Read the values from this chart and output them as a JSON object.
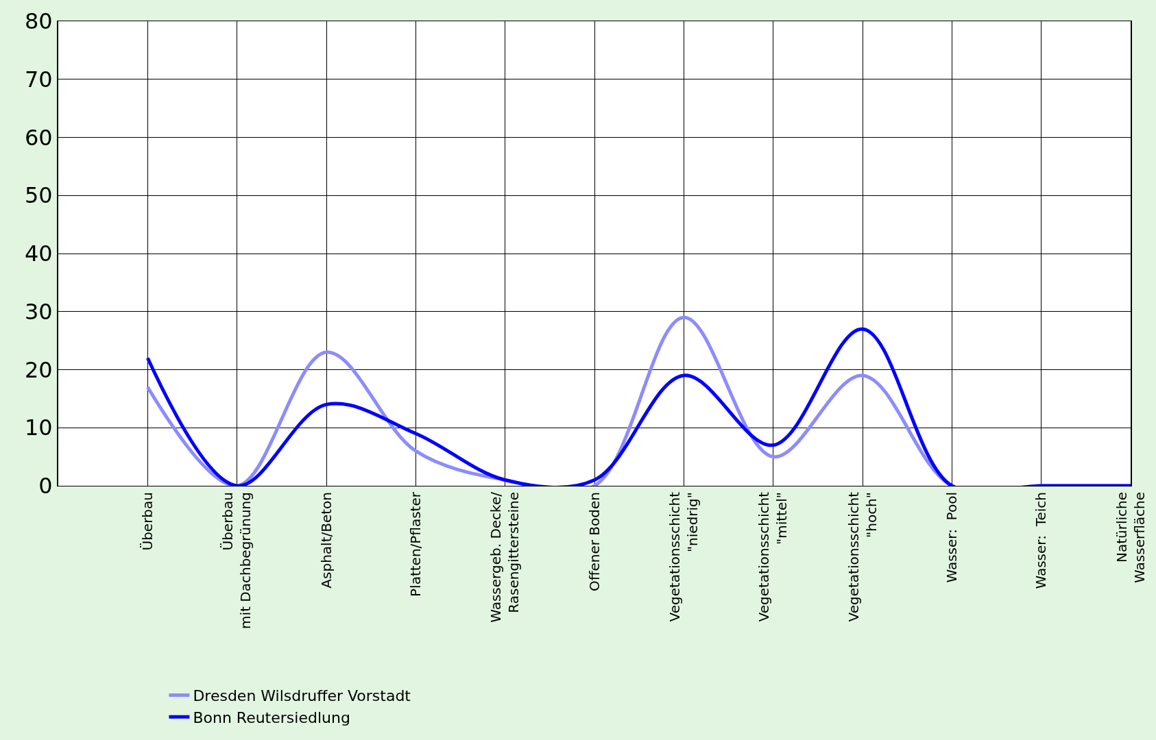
{
  "chart_data": {
    "type": "line",
    "categories": [
      "Überbau",
      "Überbau\nmit Dachbegrünung",
      "Asphalt/Beton",
      "Platten/Pflaster",
      "Wassergeb. Decke/\nRasengittersteine",
      "Offener Boden",
      "Vegetationsschicht\n\"niedrig\"",
      "Vegetationsschicht\n\"mittel\"",
      "Vegetationsschicht\n\"hoch\"",
      "Wasser:  Pool",
      "Wasser:  Teich",
      "Natürliche\nWasserfläche"
    ],
    "series": [
      {
        "name": "Dresden Wilsdruffer Vorstadt",
        "color": "#8c8cff",
        "values": [
          17,
          0,
          23,
          6,
          1,
          0,
          29,
          5,
          19,
          0,
          0,
          0
        ]
      },
      {
        "name": "Bonn Reutersiedlung",
        "color": "#0000ff",
        "values": [
          22,
          0,
          14,
          9,
          1,
          1,
          19,
          7,
          27,
          0,
          0,
          0
        ]
      }
    ],
    "ylim": [
      0,
      80
    ],
    "yticks": [
      0,
      10,
      20,
      30,
      40,
      50,
      60,
      70,
      80
    ],
    "grid": true,
    "legend": "bottom left",
    "marker": "none",
    "line_style": "solid"
  }
}
